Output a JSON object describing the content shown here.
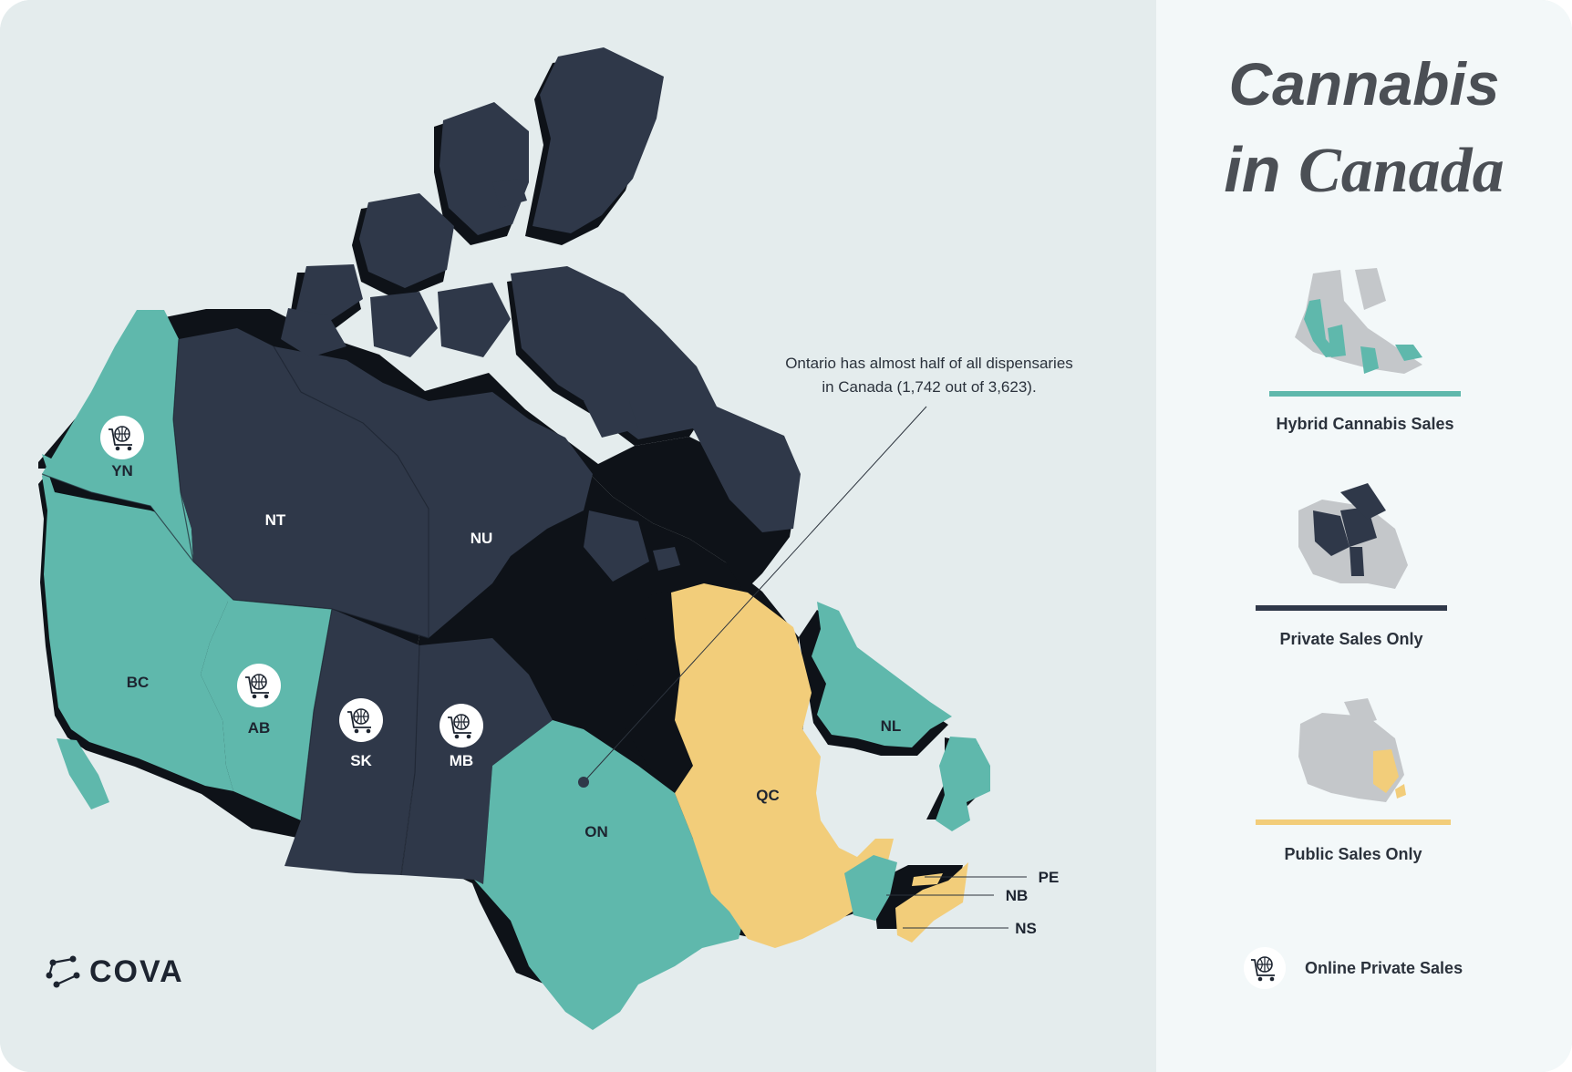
{
  "title": {
    "line1": "Cannabis",
    "line2a": "in ",
    "line2b": "Canada"
  },
  "annotation": {
    "line1": "Ontario has almost half of all dispensaries",
    "line2": "in Canada (1,742 out of 3,623)."
  },
  "provinces": {
    "YN": "YN",
    "NT": "NT",
    "NU": "NU",
    "BC": "BC",
    "AB": "AB",
    "SK": "SK",
    "MB": "MB",
    "ON": "ON",
    "QC": "QC",
    "NL": "NL",
    "PE": "PE",
    "NB": "NB",
    "NS": "NS"
  },
  "legend": {
    "hybrid": "Hybrid Cannabis Sales",
    "private": "Private Sales Only",
    "public": "Public Sales Only",
    "online": "Online Private Sales"
  },
  "colors": {
    "hybrid": "#5fb8ac",
    "private": "#2f3849",
    "public": "#f2cd7a",
    "background": "#e4eced",
    "other": "#c4c7ca"
  },
  "logo": {
    "text": "COVA"
  },
  "icons": {
    "online_sales": "shopping-cart-globe-icon",
    "logo_mark": "cova-logo-icon"
  }
}
